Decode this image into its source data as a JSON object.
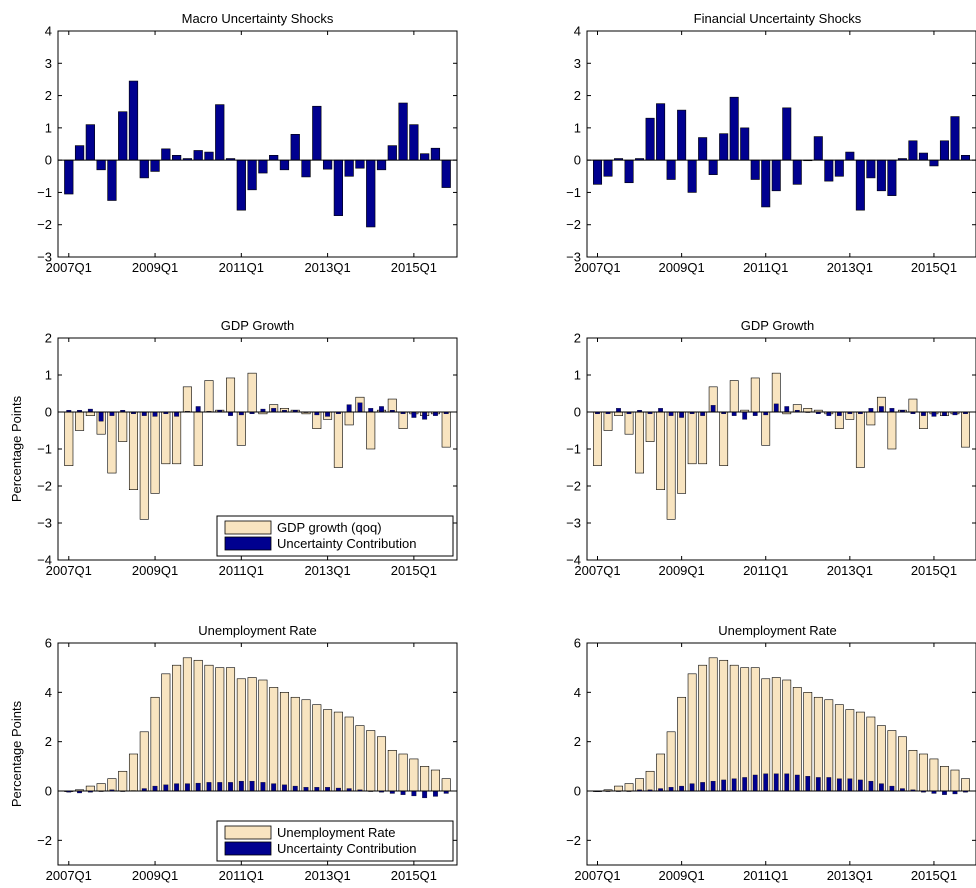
{
  "figure": {
    "colors": {
      "gdp_bar": "#f8e4c0",
      "contribution_bar": "#00008f",
      "shock_bar": "#00008f",
      "edge": "#000000"
    }
  },
  "chart_data": [
    {
      "id": "macro-shocks",
      "type": "bar",
      "title": "Macro Uncertainty Shocks",
      "ylabel": "",
      "ylim": [
        -3,
        4
      ],
      "yticks": [
        -3,
        -2,
        -1,
        0,
        1,
        2,
        3,
        4
      ],
      "xtick_labels": [
        "2007Q1",
        "2009Q1",
        "2011Q1",
        "2013Q1",
        "2015Q1"
      ],
      "xtick_quarters": [
        0,
        8,
        16,
        24,
        32
      ],
      "xlim": [
        -1,
        36
      ],
      "series": [
        {
          "role": "shock",
          "values": [
            -1.05,
            0.45,
            1.1,
            -0.3,
            -1.25,
            1.5,
            2.45,
            -0.55,
            -0.35,
            0.35,
            0.15,
            0.05,
            0.3,
            0.25,
            1.72,
            0.05,
            -1.55,
            -0.92,
            -0.4,
            0.15,
            -0.3,
            0.8,
            -0.52,
            1.67,
            -0.28,
            -1.72,
            -0.5,
            -0.25,
            -2.07,
            -0.3,
            0.45,
            1.77,
            1.1,
            0.2,
            0.37,
            -0.85
          ]
        }
      ]
    },
    {
      "id": "financial-shocks",
      "type": "bar",
      "title": "Financial Uncertainty Shocks",
      "ylabel": "",
      "ylim": [
        -3,
        4
      ],
      "yticks": [
        -3,
        -2,
        -1,
        0,
        1,
        2,
        3,
        4
      ],
      "xtick_labels": [
        "2007Q1",
        "2009Q1",
        "2011Q1",
        "2013Q1",
        "2015Q1"
      ],
      "xtick_quarters": [
        0,
        8,
        16,
        24,
        32
      ],
      "xlim": [
        -1,
        36
      ],
      "series": [
        {
          "role": "shock",
          "values": [
            -0.75,
            -0.5,
            0.05,
            -0.7,
            0.05,
            1.3,
            1.75,
            -0.6,
            1.55,
            -1.0,
            0.7,
            -0.45,
            0.82,
            1.95,
            1.0,
            -0.6,
            -1.45,
            -0.95,
            1.62,
            -0.75,
            0.0,
            0.73,
            -0.65,
            -0.5,
            0.25,
            -1.55,
            -0.55,
            -0.95,
            -1.1,
            0.05,
            0.6,
            0.22,
            -0.18,
            0.6,
            1.35,
            0.15
          ]
        }
      ]
    },
    {
      "id": "gdp-macro",
      "type": "bar",
      "title": "GDP Growth",
      "ylabel": "Percentage Points",
      "ylim": [
        -4,
        2
      ],
      "yticks": [
        -4,
        -3,
        -2,
        -1,
        0,
        1,
        2
      ],
      "xtick_labels": [
        "2007Q1",
        "2009Q1",
        "2011Q1",
        "2013Q1",
        "2015Q1"
      ],
      "xtick_quarters": [
        0,
        8,
        16,
        24,
        32
      ],
      "xlim": [
        -1,
        36
      ],
      "legend": {
        "entries": [
          "GDP growth (qoq)",
          "Uncertainty Contribution"
        ],
        "location": "lower-right"
      },
      "series": [
        {
          "name": "GDP growth (qoq)",
          "role": "wide",
          "values": [
            -1.45,
            -0.5,
            -0.1,
            -0.6,
            -1.65,
            -0.8,
            -2.1,
            -2.9,
            -2.2,
            -1.4,
            -1.4,
            0.68,
            -1.45,
            0.85,
            0.05,
            0.92,
            -0.9,
            1.05,
            -0.05,
            0.2,
            0.1,
            0.05,
            -0.05,
            -0.45,
            -0.2,
            -1.5,
            -0.35,
            0.4,
            -1.0,
            0.05,
            0.35,
            -0.45,
            -0.05,
            -0.1,
            -0.05,
            -0.95
          ]
        },
        {
          "name": "Uncertainty Contribution",
          "role": "narrow",
          "values": [
            0.05,
            0.05,
            0.08,
            -0.25,
            -0.1,
            0.05,
            -0.05,
            -0.1,
            -0.12,
            -0.05,
            -0.12,
            0.02,
            0.15,
            0.02,
            0.05,
            -0.1,
            -0.08,
            -0.05,
            0.08,
            0.1,
            0.05,
            0.05,
            0.0,
            -0.08,
            -0.12,
            -0.05,
            0.2,
            0.25,
            0.1,
            0.15,
            0.05,
            -0.05,
            -0.15,
            -0.2,
            -0.1,
            -0.05
          ]
        }
      ]
    },
    {
      "id": "gdp-financial",
      "type": "bar",
      "title": "GDP Growth",
      "ylabel": "",
      "ylim": [
        -4,
        2
      ],
      "yticks": [
        -4,
        -3,
        -2,
        -1,
        0,
        1,
        2
      ],
      "xtick_labels": [
        "2007Q1",
        "2009Q1",
        "2011Q1",
        "2013Q1",
        "2015Q1"
      ],
      "xtick_quarters": [
        0,
        8,
        16,
        24,
        32
      ],
      "xlim": [
        -1,
        36
      ],
      "series": [
        {
          "name": "GDP growth (qoq)",
          "role": "wide",
          "values": [
            -1.45,
            -0.5,
            -0.1,
            -0.6,
            -1.65,
            -0.8,
            -2.1,
            -2.9,
            -2.2,
            -1.4,
            -1.4,
            0.68,
            -1.45,
            0.85,
            0.05,
            0.92,
            -0.9,
            1.05,
            -0.05,
            0.2,
            0.1,
            0.05,
            -0.05,
            -0.45,
            -0.2,
            -1.5,
            -0.35,
            0.4,
            -1.0,
            0.05,
            0.35,
            -0.45,
            -0.05,
            -0.1,
            -0.05,
            -0.95
          ]
        },
        {
          "name": "Uncertainty Contribution",
          "role": "narrow",
          "values": [
            -0.05,
            -0.05,
            0.1,
            -0.05,
            0.05,
            -0.05,
            0.1,
            -0.1,
            -0.15,
            -0.05,
            -0.1,
            0.18,
            -0.05,
            -0.1,
            -0.2,
            -0.1,
            -0.08,
            0.22,
            0.15,
            0.05,
            0.0,
            -0.05,
            -0.1,
            -0.1,
            -0.05,
            -0.05,
            0.1,
            0.15,
            0.1,
            0.05,
            -0.05,
            -0.1,
            -0.12,
            -0.1,
            -0.08,
            -0.05
          ]
        }
      ]
    },
    {
      "id": "unemp-macro",
      "type": "bar",
      "title": "Unemployment Rate",
      "ylabel": "Percentage Points",
      "ylim": [
        -3,
        6
      ],
      "yticks": [
        -2,
        0,
        2,
        4,
        6
      ],
      "xtick_labels": [
        "2007Q1",
        "2009Q1",
        "2011Q1",
        "2013Q1",
        "2015Q1"
      ],
      "xtick_quarters": [
        0,
        8,
        16,
        24,
        32
      ],
      "xlim": [
        -1,
        36
      ],
      "legend": {
        "entries": [
          "Unemployment Rate",
          "Uncertainty Contribution"
        ],
        "location": "lower-right"
      },
      "series": [
        {
          "name": "Unemployment Rate",
          "role": "wide",
          "values": [
            0.0,
            0.05,
            0.2,
            0.3,
            0.5,
            0.8,
            1.5,
            2.4,
            3.8,
            4.75,
            5.1,
            5.4,
            5.3,
            5.1,
            5.0,
            5.0,
            4.55,
            4.6,
            4.5,
            4.2,
            4.0,
            3.8,
            3.7,
            3.5,
            3.3,
            3.2,
            3.0,
            2.65,
            2.45,
            2.2,
            1.65,
            1.5,
            1.3,
            1.0,
            0.85,
            0.5
          ]
        },
        {
          "name": "Uncertainty Contribution",
          "role": "narrow",
          "values": [
            -0.05,
            -0.08,
            -0.05,
            0.0,
            0.05,
            0.0,
            0.02,
            0.1,
            0.2,
            0.25,
            0.3,
            0.3,
            0.32,
            0.35,
            0.35,
            0.35,
            0.4,
            0.4,
            0.35,
            0.3,
            0.25,
            0.2,
            0.15,
            0.15,
            0.15,
            0.12,
            0.1,
            0.05,
            0.0,
            -0.05,
            -0.1,
            -0.15,
            -0.2,
            -0.28,
            -0.22,
            -0.1
          ]
        }
      ]
    },
    {
      "id": "unemp-financial",
      "type": "bar",
      "title": "Unemployment Rate",
      "ylabel": "",
      "ylim": [
        -3,
        6
      ],
      "yticks": [
        -2,
        0,
        2,
        4,
        6
      ],
      "xtick_labels": [
        "2007Q1",
        "2009Q1",
        "2011Q1",
        "2013Q1",
        "2015Q1"
      ],
      "xtick_quarters": [
        0,
        8,
        16,
        24,
        32
      ],
      "xlim": [
        -1,
        36
      ],
      "series": [
        {
          "name": "Unemployment Rate",
          "role": "wide",
          "values": [
            0.0,
            0.05,
            0.2,
            0.3,
            0.5,
            0.8,
            1.5,
            2.4,
            3.8,
            4.75,
            5.1,
            5.4,
            5.3,
            5.1,
            5.0,
            5.0,
            4.55,
            4.6,
            4.5,
            4.2,
            4.0,
            3.8,
            3.7,
            3.5,
            3.3,
            3.2,
            3.0,
            2.65,
            2.45,
            2.2,
            1.65,
            1.5,
            1.3,
            1.0,
            0.85,
            0.5
          ]
        },
        {
          "name": "Uncertainty Contribution",
          "role": "narrow",
          "values": [
            0.0,
            0.0,
            -0.02,
            0.0,
            0.05,
            0.05,
            0.1,
            0.15,
            0.2,
            0.3,
            0.35,
            0.4,
            0.45,
            0.5,
            0.55,
            0.65,
            0.7,
            0.7,
            0.7,
            0.65,
            0.6,
            0.55,
            0.55,
            0.5,
            0.5,
            0.45,
            0.4,
            0.3,
            0.2,
            0.1,
            0.05,
            -0.05,
            -0.1,
            -0.15,
            -0.12,
            -0.05
          ]
        }
      ]
    }
  ]
}
